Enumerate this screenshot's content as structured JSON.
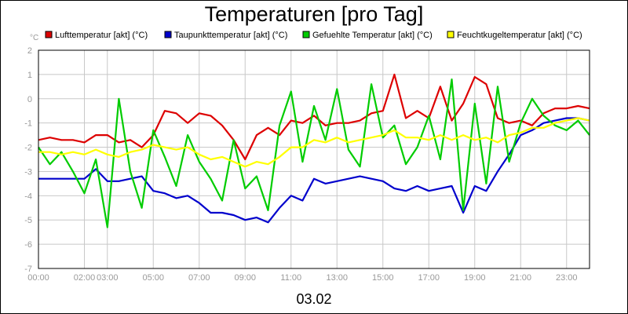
{
  "chart_data": {
    "type": "line",
    "title": "Temperaturen [pro Tag]",
    "ylabel": "°C",
    "xlabel": "03.02",
    "ylim": [
      -7,
      2
    ],
    "yticks": [
      -7,
      -6,
      -5,
      -4,
      -3,
      -2,
      -1,
      0,
      1,
      2
    ],
    "xticks": [
      "00:00",
      "02:00",
      "03:00",
      "05:00",
      "07:00",
      "09:00",
      "11:00",
      "13:00",
      "15:00",
      "17:00",
      "19:00",
      "21:00",
      "23:00"
    ],
    "xlim_hours": [
      0,
      24
    ],
    "grid": true,
    "legend_position": "top",
    "series": [
      {
        "name": "Lufttemperatur [akt] (°C)",
        "color": "#dd0000",
        "x": [
          0,
          0.5,
          1,
          1.5,
          2,
          2.5,
          3,
          3.5,
          4,
          4.5,
          5,
          5.5,
          6,
          6.5,
          7,
          7.5,
          8,
          8.5,
          9,
          9.5,
          10,
          10.5,
          11,
          11.5,
          12,
          12.5,
          13,
          13.5,
          14,
          14.5,
          15,
          15.5,
          16,
          16.5,
          17,
          17.5,
          18,
          18.5,
          19,
          19.5,
          20,
          20.5,
          21,
          21.5,
          22,
          22.5,
          23,
          23.5,
          24
        ],
        "y": [
          -1.7,
          -1.6,
          -1.7,
          -1.7,
          -1.8,
          -1.5,
          -1.5,
          -1.8,
          -1.7,
          -2.0,
          -1.5,
          -0.5,
          -0.6,
          -1.0,
          -0.6,
          -0.7,
          -1.1,
          -1.7,
          -2.5,
          -1.5,
          -1.2,
          -1.5,
          -0.9,
          -1.0,
          -0.7,
          -1.1,
          -1.0,
          -1.0,
          -0.9,
          -0.6,
          -0.5,
          1.0,
          -0.8,
          -0.5,
          -0.8,
          0.5,
          -0.9,
          -0.2,
          0.9,
          0.6,
          -0.8,
          -1.0,
          -0.9,
          -1.1,
          -0.6,
          -0.4,
          -0.4,
          -0.3,
          -0.4
        ]
      },
      {
        "name": "Taupunkttemperatur [akt] (°C)",
        "color": "#0000cc",
        "x": [
          0,
          0.5,
          1,
          1.5,
          2,
          2.5,
          3,
          3.5,
          4,
          4.5,
          5,
          5.5,
          6,
          6.5,
          7,
          7.5,
          8,
          8.5,
          9,
          9.5,
          10,
          10.5,
          11,
          11.5,
          12,
          12.5,
          13,
          13.5,
          14,
          14.5,
          15,
          15.5,
          16,
          16.5,
          17,
          17.5,
          18,
          18.5,
          19,
          19.5,
          20,
          20.5,
          21,
          21.5,
          22,
          22.5,
          23,
          23.5,
          24
        ],
        "y": [
          -3.3,
          -3.3,
          -3.3,
          -3.3,
          -3.3,
          -2.9,
          -3.4,
          -3.4,
          -3.3,
          -3.2,
          -3.8,
          -3.9,
          -4.1,
          -4.0,
          -4.3,
          -4.7,
          -4.7,
          -4.8,
          -5.0,
          -4.9,
          -5.1,
          -4.5,
          -4.0,
          -4.2,
          -3.3,
          -3.5,
          -3.4,
          -3.3,
          -3.2,
          -3.3,
          -3.4,
          -3.7,
          -3.8,
          -3.6,
          -3.8,
          -3.7,
          -3.6,
          -4.7,
          -3.6,
          -3.8,
          -3.0,
          -2.3,
          -1.5,
          -1.3,
          -1.0,
          -0.9,
          -0.8,
          -0.8,
          -0.9
        ]
      },
      {
        "name": "Gefuehlte Temperatur [akt] (°C)",
        "color": "#00cc00",
        "x": [
          0,
          0.5,
          1,
          1.5,
          2,
          2.5,
          3,
          3.5,
          4,
          4.5,
          5,
          5.5,
          6,
          6.5,
          7,
          7.5,
          8,
          8.5,
          9,
          9.5,
          10,
          10.5,
          11,
          11.5,
          12,
          12.5,
          13,
          13.5,
          14,
          14.5,
          15,
          15.5,
          16,
          16.5,
          17,
          17.5,
          18,
          18.5,
          19,
          19.5,
          20,
          20.5,
          21,
          21.5,
          22,
          22.5,
          23,
          23.5,
          24
        ],
        "y": [
          -2.0,
          -2.7,
          -2.2,
          -3.0,
          -3.9,
          -2.5,
          -5.3,
          0.0,
          -3.0,
          -4.5,
          -1.3,
          -2.4,
          -3.6,
          -1.5,
          -2.6,
          -3.3,
          -4.2,
          -1.7,
          -3.7,
          -3.2,
          -4.6,
          -1.1,
          0.3,
          -2.6,
          -0.3,
          -1.7,
          0.4,
          -2.1,
          -2.8,
          0.6,
          -1.6,
          -1.1,
          -2.7,
          -2.0,
          -0.7,
          -2.5,
          0.8,
          -4.6,
          -0.2,
          -3.5,
          0.5,
          -2.6,
          -1.0,
          0.0,
          -0.7,
          -1.1,
          -1.3,
          -0.9,
          -1.5
        ]
      },
      {
        "name": "Feuchtkugeltemperatur [akt] (°C)",
        "color": "#ffff00",
        "x": [
          0,
          0.5,
          1,
          1.5,
          2,
          2.5,
          3,
          3.5,
          4,
          4.5,
          5,
          5.5,
          6,
          6.5,
          7,
          7.5,
          8,
          8.5,
          9,
          9.5,
          10,
          10.5,
          11,
          11.5,
          12,
          12.5,
          13,
          13.5,
          14,
          14.5,
          15,
          15.5,
          16,
          16.5,
          17,
          17.5,
          18,
          18.5,
          19,
          19.5,
          20,
          20.5,
          21,
          21.5,
          22,
          22.5,
          23,
          23.5,
          24
        ],
        "y": [
          -2.2,
          -2.2,
          -2.3,
          -2.2,
          -2.3,
          -2.1,
          -2.3,
          -2.4,
          -2.2,
          -2.1,
          -1.9,
          -2.0,
          -2.1,
          -2.0,
          -2.3,
          -2.5,
          -2.4,
          -2.6,
          -2.8,
          -2.6,
          -2.7,
          -2.4,
          -2.0,
          -2.0,
          -1.7,
          -1.8,
          -1.6,
          -1.8,
          -1.7,
          -1.6,
          -1.5,
          -1.3,
          -1.6,
          -1.6,
          -1.7,
          -1.5,
          -1.7,
          -1.5,
          -1.7,
          -1.6,
          -1.8,
          -1.5,
          -1.4,
          -1.2,
          -1.2,
          -1.0,
          -0.9,
          -0.8,
          -0.9
        ]
      }
    ]
  }
}
